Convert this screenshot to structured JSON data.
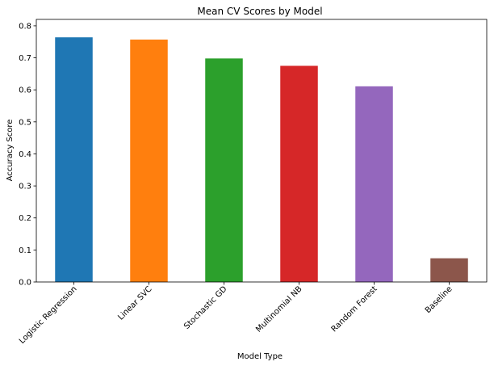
{
  "chart_data": {
    "type": "bar",
    "title": "Mean CV Scores by Model",
    "xlabel": "Model Type",
    "ylabel": "Accuracy Score",
    "categories": [
      "Logistic Regression",
      "Linear SVC",
      "Stochastic GD",
      "Multinomial NB",
      "Random Forest",
      "Baseline"
    ],
    "values": [
      0.764,
      0.757,
      0.698,
      0.675,
      0.611,
      0.074
    ],
    "colors": [
      "#1f77b4",
      "#ff7f0e",
      "#2ca02c",
      "#d62728",
      "#9467bd",
      "#8c564b"
    ],
    "ylim": [
      0,
      0.82
    ],
    "yticks": [
      "0.0",
      "0.1",
      "0.2",
      "0.3",
      "0.4",
      "0.5",
      "0.6",
      "0.7",
      "0.8"
    ],
    "grid": false,
    "legend": "none"
  }
}
